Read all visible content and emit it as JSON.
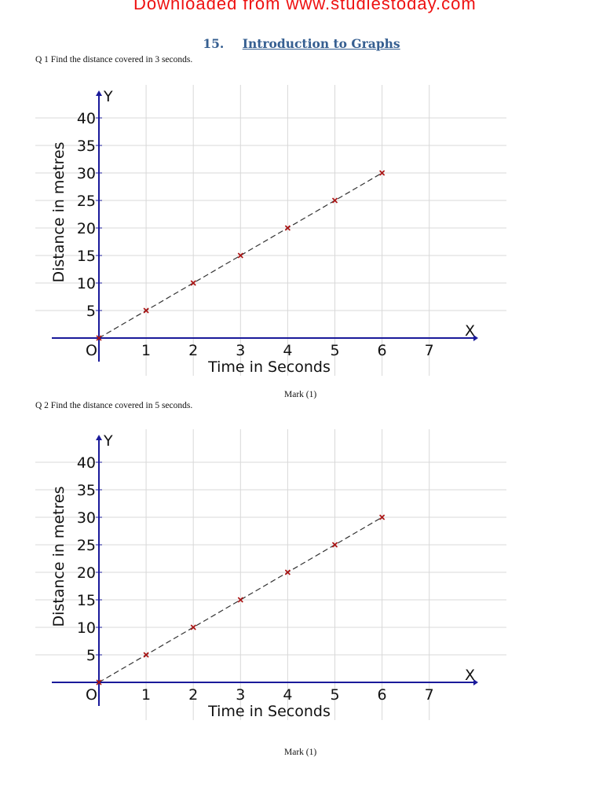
{
  "header": {
    "watermark": "Downloaded from www.studiestoday.com",
    "chapter_number": "15.",
    "chapter_title": "Introduction to Graphs"
  },
  "questions": [
    {
      "text": "Q 1 Find the distance covered in 3 seconds.",
      "mark": "Mark (1)"
    },
    {
      "text": "Q 2 Find the distance covered in 5 seconds.",
      "mark": "Mark (1)"
    }
  ],
  "colors": {
    "axis": "#1a1a9a",
    "grid": "#d8d8d8",
    "marker": "#aa1111",
    "line": "#333333",
    "title": "#365f91",
    "watermark": "#ee1111"
  },
  "chart_data": [
    {
      "type": "line",
      "title": "",
      "xlabel": "Time in Seconds",
      "ylabel": "Distance in metres",
      "x_axis_letter": "X",
      "y_axis_letter": "Y",
      "origin_label": "O",
      "x_ticks": [
        1,
        2,
        3,
        4,
        5,
        6,
        7
      ],
      "y_ticks": [
        5,
        10,
        15,
        20,
        25,
        30,
        35,
        40
      ],
      "xlim": [
        0,
        7.8
      ],
      "ylim": [
        0,
        42
      ],
      "grid": true,
      "line_style": "dashed",
      "marker": "x",
      "series": [
        {
          "name": "distance",
          "x": [
            0,
            1,
            2,
            3,
            4,
            5,
            6
          ],
          "y": [
            0,
            5,
            10,
            15,
            20,
            25,
            30
          ]
        }
      ]
    },
    {
      "type": "line",
      "title": "",
      "xlabel": "Time in Seconds",
      "ylabel": "Distance in metres",
      "x_axis_letter": "X",
      "y_axis_letter": "Y",
      "origin_label": "O",
      "x_ticks": [
        1,
        2,
        3,
        4,
        5,
        6,
        7
      ],
      "y_ticks": [
        5,
        10,
        15,
        20,
        25,
        30,
        35,
        40
      ],
      "xlim": [
        0,
        7.8
      ],
      "ylim": [
        0,
        42
      ],
      "grid": true,
      "line_style": "dashed",
      "marker": "x",
      "series": [
        {
          "name": "distance",
          "x": [
            0,
            1,
            2,
            3,
            4,
            5,
            6
          ],
          "y": [
            0,
            5,
            10,
            15,
            20,
            25,
            30
          ]
        }
      ]
    }
  ]
}
